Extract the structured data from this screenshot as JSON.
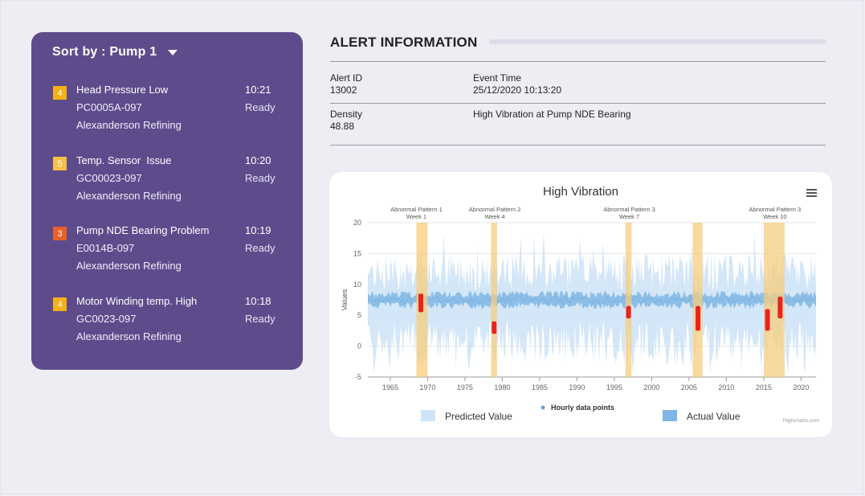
{
  "sort": {
    "label": "Sort by : Pump 1"
  },
  "alerts": [
    {
      "priority": "4",
      "color": "#f5b018",
      "title": "Head Pressure Low",
      "code": "PC0005A-097",
      "company": "Alexanderson Refining",
      "time": "10:21",
      "status": "Ready"
    },
    {
      "priority": "5",
      "color": "#f5c04a",
      "title": "Temp. Sensor  Issue",
      "code": "GC00023-097",
      "company": "Alexanderson Refining",
      "time": "10:20",
      "status": "Ready"
    },
    {
      "priority": "3",
      "color": "#e8602a",
      "title": "Pump NDE Bearing Problem",
      "code": "E0014B-097",
      "company": "Alexanderson Refining",
      "time": "10:19",
      "status": "Ready"
    },
    {
      "priority": "4",
      "color": "#f5b018",
      "title": "Motor Winding temp. High",
      "code": "GC0023-097",
      "company": "Alexanderson Refining",
      "time": "10:18",
      "status": "Ready"
    }
  ],
  "info": {
    "title": "ALERT INFORMATION",
    "alert_id_label": "Alert ID",
    "alert_id": "13002",
    "event_time_label": "Event Time",
    "event_time": "25/12/2020 10:13:20",
    "density_label": "Density",
    "density": "48.88",
    "description": "High Vibration at Pump NDE Bearing"
  },
  "chart_data": {
    "type": "area",
    "title": "High Vibration",
    "ylabel": "Values",
    "xlabel": "",
    "xlim": [
      1962,
      2022
    ],
    "ylim": [
      -5,
      20
    ],
    "x_ticks": [
      1965,
      1970,
      1975,
      1980,
      1985,
      1990,
      1995,
      2000,
      2005,
      2010,
      2015,
      2020
    ],
    "y_ticks": [
      -5,
      0,
      5,
      10,
      15,
      20
    ],
    "grid": true,
    "legend_position": "bottom",
    "series": [
      {
        "name": "Predicted Value",
        "color": "#cfe4f7",
        "range_low": -3,
        "range_high": 15
      },
      {
        "name": "Hourly data points",
        "color": "#6aa6dc",
        "baseline": 7.5
      },
      {
        "name": "Actual Value",
        "color": "#7fb6e4",
        "range_low": 6,
        "range_high": 9
      }
    ],
    "annotations": [
      {
        "line1": "Abnormal Pattern 1",
        "line2": "Week 1",
        "x_label": 1968.5
      },
      {
        "line1": "Abnormal Pattern 2",
        "line2": "Week 4",
        "x_label": 1979
      },
      {
        "line1": "Abnormal Pattern 3",
        "line2": "Week 7",
        "x_label": 1997
      },
      {
        "line1": "Abnormal Pattern 3",
        "line2": "Week 10",
        "x_label": 2016.5
      }
    ],
    "bands": [
      {
        "from": 1968.5,
        "to": 1970,
        "color": "#f6cc7e"
      },
      {
        "from": 1978.5,
        "to": 1979.3,
        "color": "#f6cc7e"
      },
      {
        "from": 1996.5,
        "to": 1997.3,
        "color": "#f6cc7e"
      },
      {
        "from": 2005.5,
        "to": 2006.8,
        "color": "#f6cc7e"
      },
      {
        "from": 2015,
        "to": 2017.8,
        "color": "#f6cc7e"
      }
    ],
    "anomalies": [
      {
        "x": 1969.1,
        "low": 5.5,
        "high": 8.5
      },
      {
        "x": 1978.9,
        "low": 2,
        "high": 4
      },
      {
        "x": 1996.9,
        "low": 4.5,
        "high": 6.5
      },
      {
        "x": 2006.2,
        "low": 2.5,
        "high": 6.5
      },
      {
        "x": 2015.5,
        "low": 2.5,
        "high": 6
      },
      {
        "x": 2017.2,
        "low": 4.5,
        "high": 8
      }
    ],
    "anomaly_color": "#e8231f",
    "credit": "Highcharts.com"
  }
}
